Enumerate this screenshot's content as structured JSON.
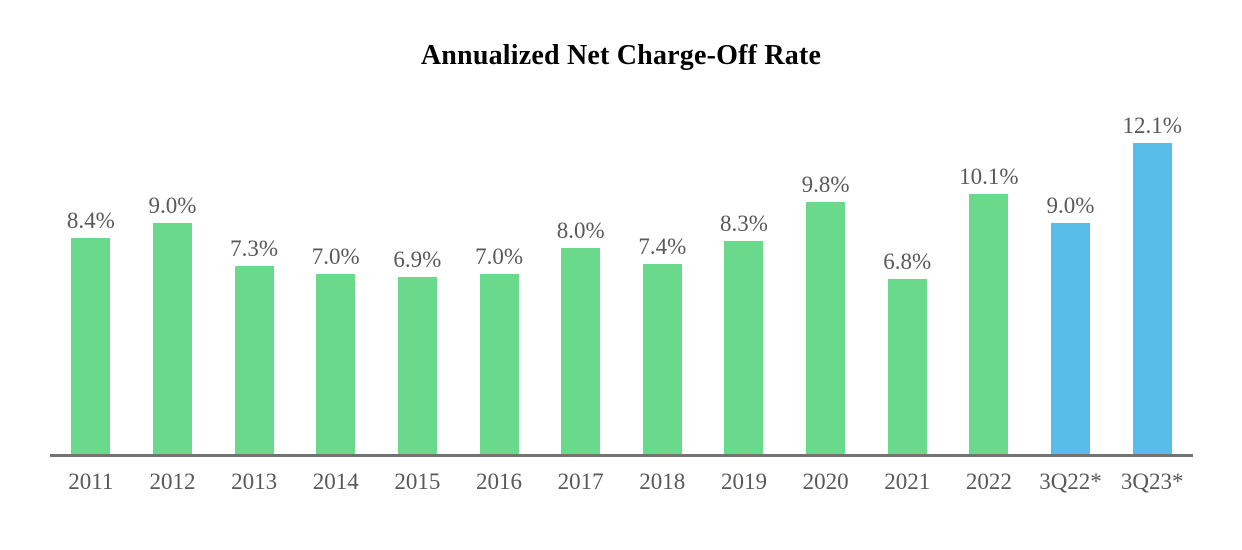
{
  "chart_data": {
    "type": "bar",
    "title": "Annualized Net Charge-Off Rate",
    "categories": [
      "2011",
      "2012",
      "2013",
      "2014",
      "2015",
      "2016",
      "2017",
      "2018",
      "2019",
      "2020",
      "2021",
      "2022",
      "3Q22*",
      "3Q23*"
    ],
    "values": [
      8.4,
      9.0,
      7.3,
      7.0,
      6.9,
      7.0,
      8.0,
      7.4,
      8.3,
      9.8,
      6.8,
      10.1,
      9.0,
      12.1
    ],
    "value_labels": [
      "8.4%",
      "9.0%",
      "7.3%",
      "7.0%",
      "6.9%",
      "7.0%",
      "8.0%",
      "7.4%",
      "8.3%",
      "9.8%",
      "6.8%",
      "10.1%",
      "9.0%",
      "12.1%"
    ],
    "xlabel": "",
    "ylabel": "",
    "ylim": [
      0,
      14
    ],
    "grid": false,
    "value_axis_visible": false,
    "legend": "none",
    "data_labels": "above-bars",
    "colors": {
      "default_bar": "#6BD98B",
      "highlight_bar": "#58BDE8",
      "highlight_categories": [
        "3Q22*",
        "3Q23*"
      ],
      "label_text": "#595959",
      "title_text": "#000000",
      "axis_line": "#737373"
    }
  }
}
